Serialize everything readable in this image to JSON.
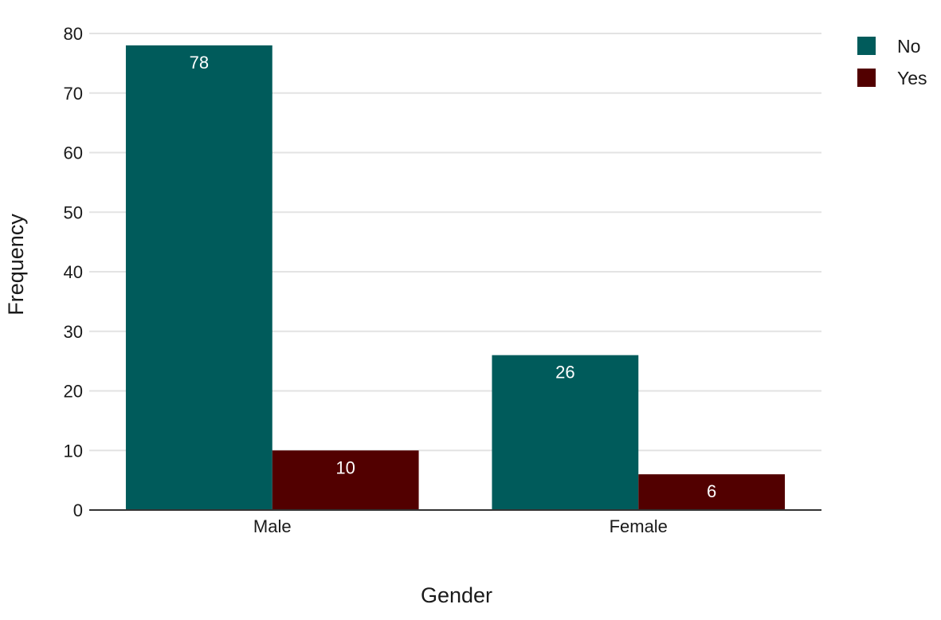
{
  "chart_data": {
    "type": "bar",
    "title": "",
    "xlabel": "Gender",
    "ylabel": "Frequency",
    "categories": [
      "Male",
      "Female"
    ],
    "series": [
      {
        "name": "No",
        "values": [
          78,
          26
        ],
        "color": "#005b5b"
      },
      {
        "name": "Yes",
        "values": [
          10,
          6
        ],
        "color": "#520000"
      }
    ],
    "ylim": [
      0,
      80
    ],
    "yticks": [
      0,
      10,
      20,
      30,
      40,
      50,
      60,
      70,
      80
    ],
    "grid": true,
    "legend_position": "top-right",
    "data_labels": true
  }
}
